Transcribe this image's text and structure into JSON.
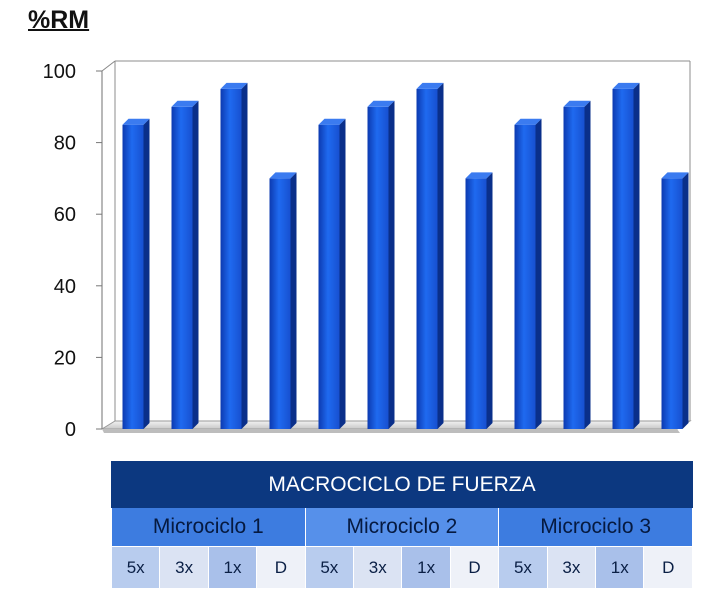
{
  "chart_data": {
    "type": "bar",
    "ylabel": "%RM",
    "ylim": [
      0,
      100
    ],
    "yticks": [
      0,
      20,
      40,
      60,
      80,
      100
    ],
    "categories": [
      "5x",
      "3x",
      "1x",
      "D",
      "5x",
      "3x",
      "1x",
      "D",
      "5x",
      "3x",
      "1x",
      "D"
    ],
    "values": [
      85,
      90,
      95,
      70,
      85,
      90,
      95,
      70,
      85,
      90,
      95,
      70
    ],
    "bar_color": "#1a5fe0",
    "bar_dark": "#0a2f8a",
    "grid": false
  },
  "table": {
    "title": "MACROCICLO DE FUERZA",
    "groups": [
      {
        "label": "Microciclo 1",
        "items": [
          "5x",
          "3x",
          "1x",
          "D"
        ]
      },
      {
        "label": "Microciclo 2",
        "items": [
          "5x",
          "3x",
          "1x",
          "D"
        ]
      },
      {
        "label": "Microciclo 3",
        "items": [
          "5x",
          "3x",
          "1x",
          "D"
        ]
      }
    ]
  }
}
